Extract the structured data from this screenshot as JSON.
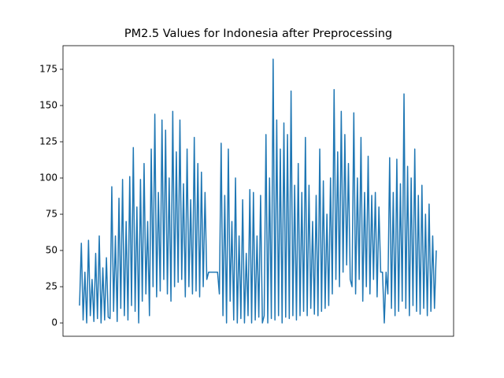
{
  "chart_data": {
    "type": "line",
    "title": "PM2.5 Values for Indonesia after Preprocessing",
    "color": "#1f77b4",
    "ylim": [
      -9.2,
      191.3
    ],
    "yticks": [
      0,
      25,
      50,
      75,
      100,
      125,
      150,
      175
    ],
    "values": [
      12,
      55,
      2,
      35,
      0,
      57,
      5,
      30,
      1,
      48,
      3,
      60,
      0,
      38,
      2,
      45,
      4,
      3,
      94,
      8,
      60,
      1,
      86,
      10,
      99,
      5,
      70,
      2,
      101,
      12,
      121,
      8,
      80,
      0,
      99,
      15,
      110,
      20,
      70,
      5,
      120,
      25,
      144,
      18,
      90,
      22,
      140,
      30,
      133,
      20,
      100,
      15,
      146,
      25,
      118,
      28,
      140,
      30,
      96,
      18,
      120,
      25,
      85,
      20,
      128,
      22,
      110,
      18,
      104,
      25,
      90,
      30,
      35,
      35,
      35,
      35,
      35,
      35,
      20,
      124,
      5,
      88,
      0,
      120,
      15,
      70,
      2,
      100,
      0,
      60,
      3,
      85,
      0,
      48,
      5,
      92,
      0,
      90,
      2,
      60,
      4,
      88,
      0,
      5,
      130,
      0,
      100,
      3,
      182,
      2,
      140,
      5,
      120,
      0,
      138,
      4,
      130,
      3,
      160,
      5,
      95,
      2,
      110,
      5,
      90,
      8,
      128,
      5,
      95,
      10,
      70,
      6,
      88,
      5,
      120,
      8,
      98,
      10,
      75,
      12,
      100,
      20,
      161,
      30,
      118,
      25,
      146,
      35,
      130,
      40,
      110,
      30,
      25,
      145,
      20,
      100,
      30,
      128,
      15,
      90,
      25,
      115,
      20,
      88,
      30,
      90,
      18,
      80,
      35,
      35,
      0,
      35,
      20,
      114,
      10,
      90,
      5,
      113,
      8,
      96,
      15,
      158,
      10,
      108,
      5,
      100,
      12,
      120,
      8,
      88,
      6,
      95,
      10,
      75,
      5,
      82,
      8,
      60,
      10,
      50
    ]
  }
}
